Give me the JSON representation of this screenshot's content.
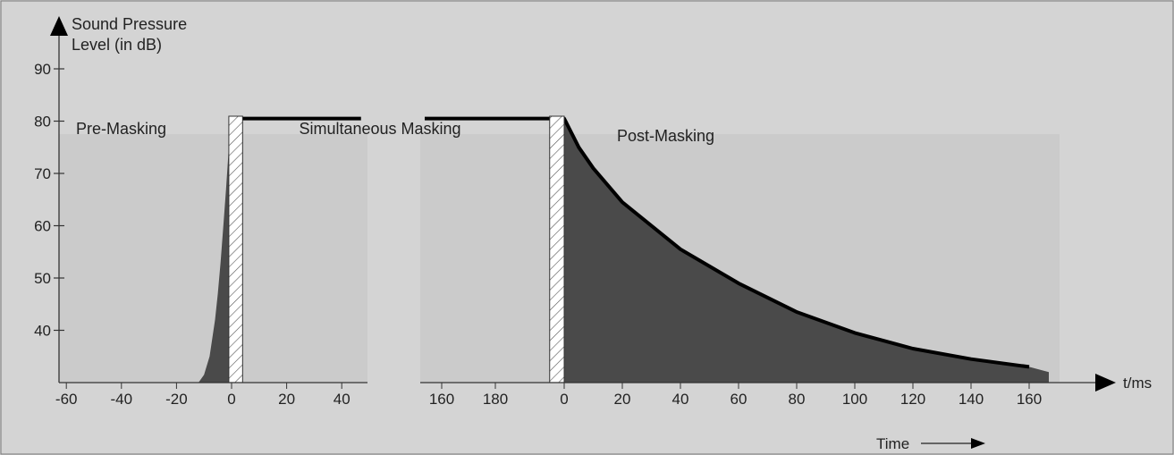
{
  "chart_data": {
    "type": "area",
    "ylabel_lines": [
      "Sound Pressure",
      "Level (in dB)"
    ],
    "y_ticks": [
      90,
      80,
      70,
      60,
      50,
      40
    ],
    "ylim": [
      30,
      95
    ],
    "x_unit_label": "t/ms",
    "time_label": "Time",
    "regions": [
      "Pre-Masking",
      "Simultaneous Masking",
      "Post-Masking"
    ],
    "left_panel": {
      "x_ticks": [
        -60,
        -40,
        -20,
        0,
        20,
        40
      ],
      "xlim": [
        -63,
        47
      ],
      "masker_bar_x": [
        -1,
        4
      ],
      "masker_level_x": [
        4,
        47
      ],
      "masker_level_db": 80.5,
      "pre_masking": {
        "x": [
          -12,
          -10,
          -8,
          -6,
          -5,
          -4,
          -3,
          -2,
          -1,
          0
        ],
        "y": [
          30,
          31.5,
          35,
          42,
          47,
          53,
          60,
          67,
          75,
          80
        ]
      }
    },
    "right_panel": {
      "x_ticks_before": [
        160,
        180
      ],
      "x_ticks_after": [
        0,
        20,
        40,
        60,
        80,
        100,
        120,
        140,
        160
      ],
      "masker_level_db": 80.5,
      "post_masking": {
        "x": [
          0,
          5,
          10,
          20,
          40,
          60,
          80,
          100,
          120,
          140,
          160
        ],
        "y": [
          80.5,
          75,
          71,
          64.5,
          55.5,
          49,
          43.5,
          39.5,
          36.5,
          34.5,
          33
        ]
      }
    },
    "colors": {
      "background": "#d4d4d4",
      "panel": "#cbcbcb",
      "fill": "#4a4a4a",
      "line": "#000000"
    }
  }
}
